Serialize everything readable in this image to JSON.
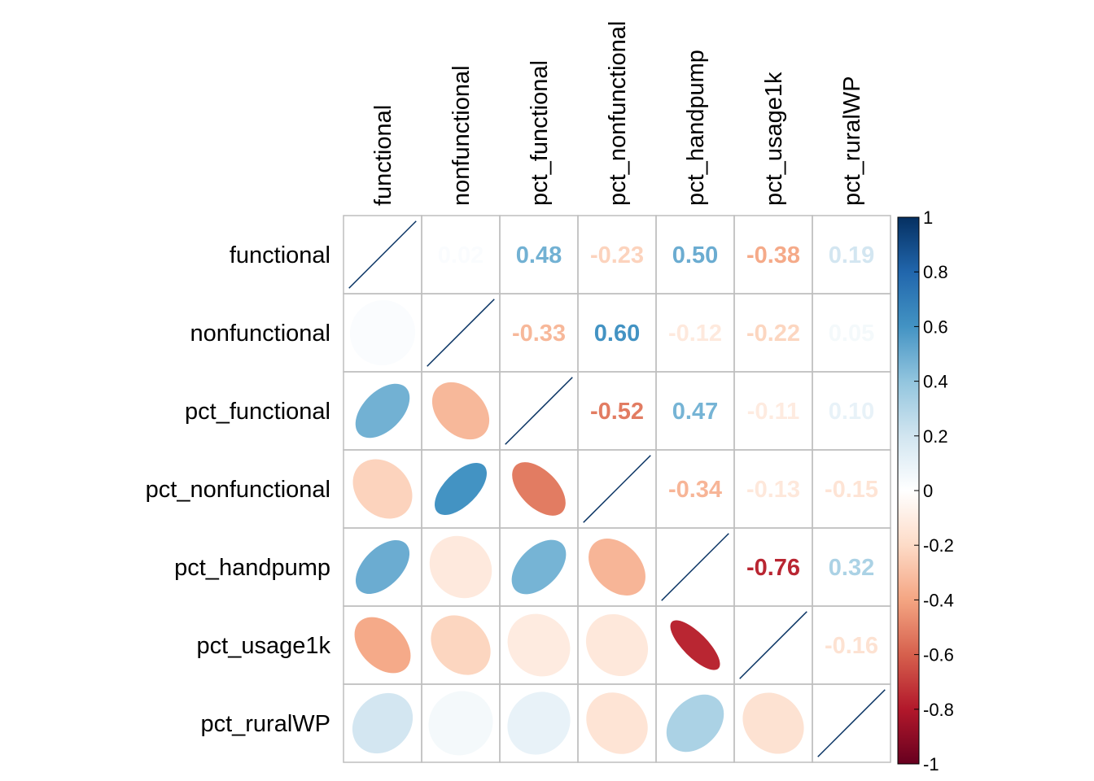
{
  "chart_data": {
    "type": "heatmap",
    "variables": [
      "functional",
      "nonfunctional",
      "pct_functional",
      "pct_nonfunctional",
      "pct_handpump",
      "pct_usage1k",
      "pct_ruralWP"
    ],
    "matrix": [
      [
        1.0,
        0.02,
        0.48,
        -0.23,
        0.5,
        -0.38,
        0.19
      ],
      [
        0.02,
        1.0,
        -0.33,
        0.6,
        -0.12,
        -0.22,
        0.05
      ],
      [
        0.48,
        -0.33,
        1.0,
        -0.52,
        0.47,
        -0.11,
        0.1
      ],
      [
        -0.23,
        0.6,
        -0.52,
        1.0,
        -0.34,
        -0.13,
        -0.15
      ],
      [
        0.5,
        -0.12,
        0.47,
        -0.34,
        1.0,
        -0.76,
        0.32
      ],
      [
        -0.38,
        -0.22,
        -0.11,
        -0.13,
        -0.76,
        1.0,
        -0.16
      ],
      [
        0.19,
        0.05,
        0.1,
        -0.15,
        0.32,
        -0.16,
        1.0
      ]
    ],
    "upper_triangle": "numbers",
    "lower_triangle": "ellipses",
    "diagonal": "lines",
    "color_range": [
      -1,
      1
    ],
    "colorbar_ticks": [
      "1",
      "0.8",
      "0.6",
      "0.4",
      "0.2",
      "0",
      "-0.2",
      "-0.4",
      "-0.6",
      "-0.8",
      "-1"
    ],
    "colorbar_tick_values": [
      1,
      0.8,
      0.6,
      0.4,
      0.2,
      0,
      -0.2,
      -0.4,
      -0.6,
      -0.8,
      -1
    ],
    "legend_position": "right",
    "grid": true
  },
  "colors": {
    "negative_end": "#67001F",
    "neutral": "#FFFFFF",
    "positive_end": "#053061",
    "grid": "#BEBEBE"
  }
}
